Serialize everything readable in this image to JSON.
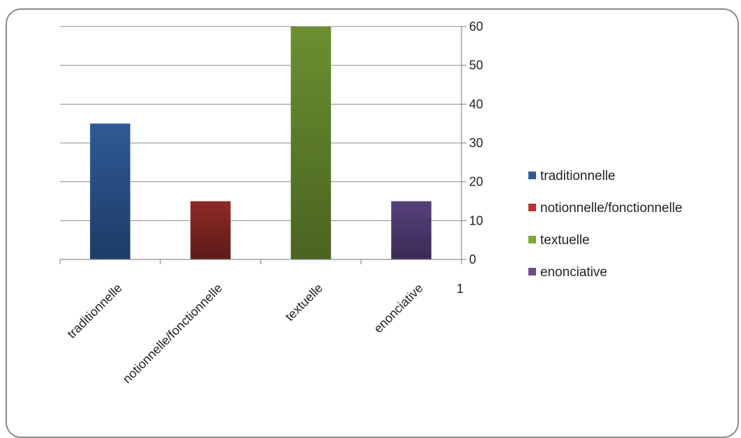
{
  "chart_data": {
    "type": "bar",
    "categories": [
      "traditionnelle",
      "notionnelle/fonctionnelle",
      "textuelle",
      "enonciative"
    ],
    "values": [
      35,
      15,
      60,
      15
    ],
    "series": [
      {
        "name": "traditionnelle",
        "values": [
          35,
          15,
          60,
          15
        ]
      }
    ],
    "legend": {
      "position": "right",
      "entries": [
        {
          "label": "traditionnelle",
          "color": "#2e5a95"
        },
        {
          "label": "notionnelle/fonctionnelle",
          "color": "#b83530"
        },
        {
          "label": "textuelle",
          "color": "#7da83c"
        },
        {
          "label": "enonciative",
          "color": "#6a4d8c"
        }
      ]
    },
    "bar_colors": [
      {
        "top": "#2e5a95",
        "bottom": "#1d3b66"
      },
      {
        "top": "#8e2a26",
        "bottom": "#5e1b18"
      },
      {
        "top": "#6b8f30",
        "bottom": "#4a6421"
      },
      {
        "top": "#57407a",
        "bottom": "#3b2a55"
      }
    ],
    "y_axis": {
      "position": "right",
      "ylim": [
        0,
        60
      ],
      "ticks": [
        0,
        10,
        20,
        30,
        40,
        50,
        60
      ]
    },
    "x_axis": {
      "extra_label": "1"
    },
    "grid": true,
    "title": "",
    "xlabel": "",
    "ylabel": ""
  }
}
